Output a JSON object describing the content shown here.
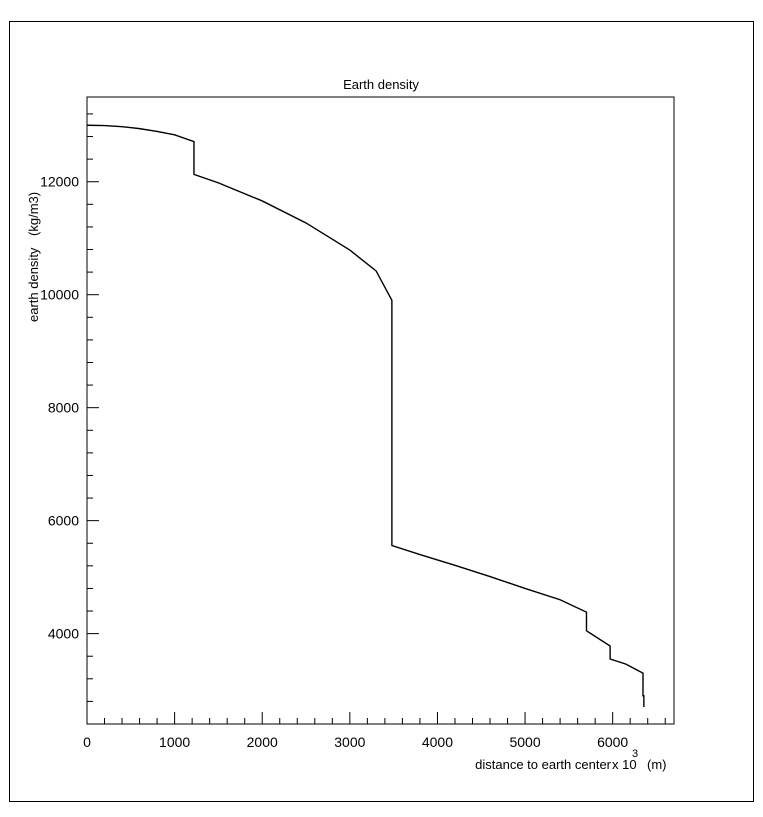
{
  "chart_data": {
    "type": "line",
    "title": "Earth density",
    "xlabel": "distance to earth center",
    "xlabel_multiplier": "x 10",
    "xlabel_exponent": "3",
    "xlabel_unit": "(m)",
    "ylabel": "earth density",
    "ylabel_unit": "(kg/m3)",
    "xlim": [
      0,
      6700
    ],
    "ylim": [
      2400,
      13500
    ],
    "x_ticks": [
      0,
      1000,
      2000,
      3000,
      4000,
      5000,
      6000
    ],
    "y_ticks": [
      4000,
      6000,
      8000,
      10000,
      12000
    ],
    "grid": false,
    "series": [
      {
        "x": [
          0,
          200,
          400,
          600,
          800,
          1000,
          1221,
          1221,
          1500,
          2000,
          2500,
          3000,
          3300,
          3480,
          3480,
          3800,
          4200,
          4600,
          5000,
          5400,
          5701,
          5701,
          5771,
          5971,
          5971,
          6151,
          6151,
          6346,
          6346,
          6356,
          6356
        ],
        "y": [
          13000,
          12995,
          12975,
          12940,
          12890,
          12830,
          12710,
          12130,
          11980,
          11660,
          11270,
          10790,
          10420,
          9900,
          5560,
          5400,
          5210,
          5010,
          4800,
          4600,
          4380,
          4050,
          3980,
          3780,
          3550,
          3460,
          3460,
          3300,
          2900,
          2900,
          2700
        ]
      }
    ]
  }
}
